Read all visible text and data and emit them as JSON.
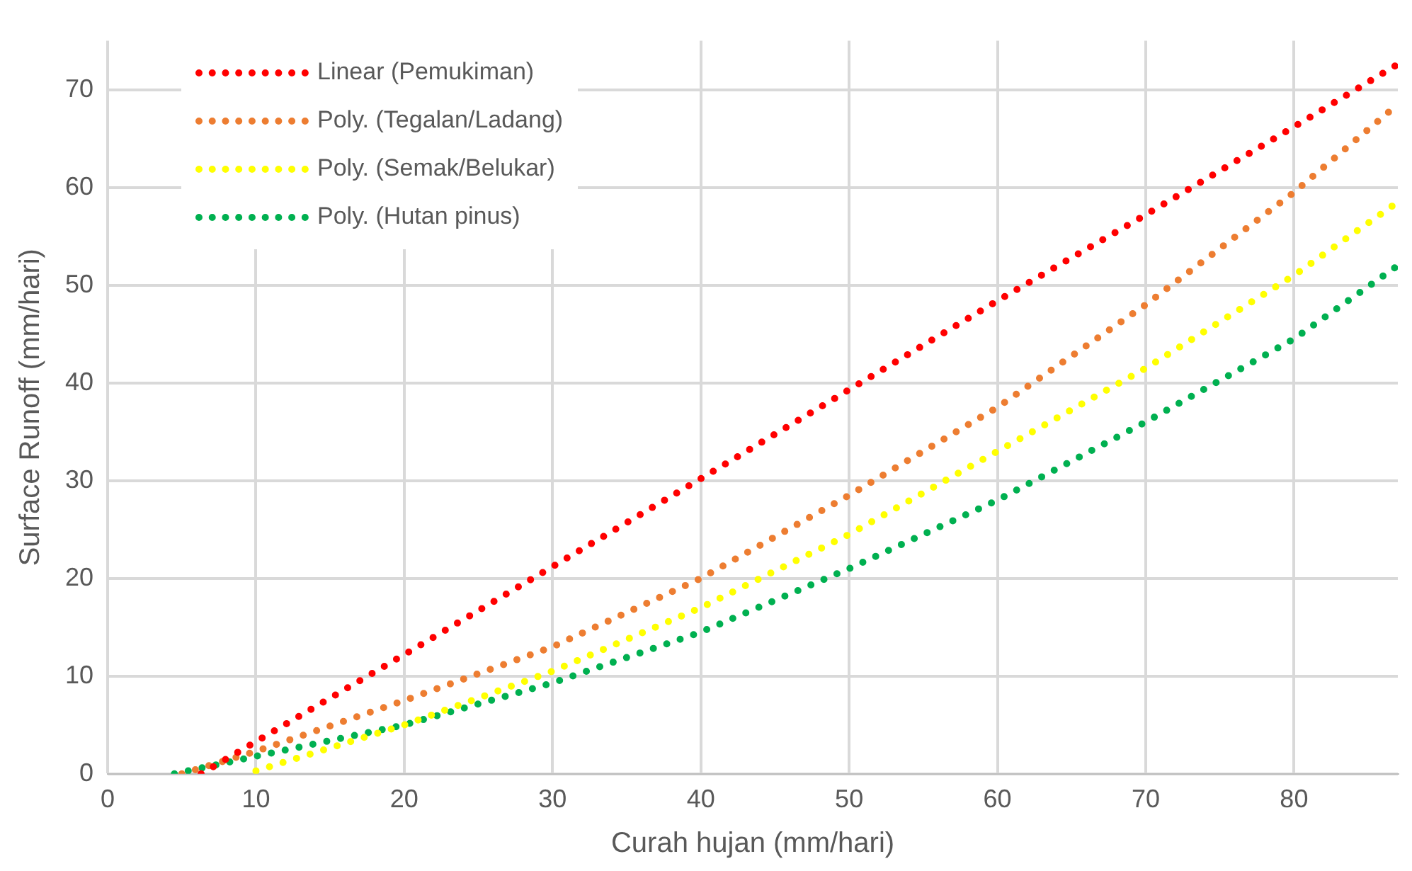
{
  "chart_data": {
    "type": "line",
    "xlabel": "Curah hujan (mm/hari)",
    "ylabel": "Surface Runoff (mm/hari)",
    "xlim": [
      0,
      87
    ],
    "xticks": [
      0,
      10,
      20,
      30,
      40,
      50,
      60,
      70,
      80
    ],
    "ylim": [
      0,
      75
    ],
    "yticks": [
      0,
      10,
      20,
      30,
      40,
      50,
      60,
      70
    ],
    "grid": true,
    "legend": "top left",
    "marker": "none",
    "line_style": "dotted",
    "series": [
      {
        "name": "Linear (Pemukiman)",
        "color": "#ff0000",
        "x": [
          6.3,
          10,
          20,
          30,
          40,
          50,
          60,
          70,
          80,
          87
        ],
        "values": [
          0,
          3.3,
          12.2,
          21.2,
          30.2,
          39.3,
          48.4,
          57.2,
          66.2,
          72.6
        ]
      },
      {
        "name": "Poly. (Tegalan/Ladang)",
        "color": "#ed7d31",
        "x": [
          5,
          10,
          20,
          30,
          40,
          50,
          60,
          70,
          80,
          87
        ],
        "values": [
          0,
          2.3,
          7.5,
          13,
          20,
          28.5,
          37.5,
          48,
          59.5,
          68.5
        ]
      },
      {
        "name": "Poly. (Semak/Belukar)",
        "color": "#ffff00",
        "x": [
          10,
          20,
          30,
          40,
          50,
          60,
          70,
          80,
          87
        ],
        "values": [
          0.3,
          5,
          10.5,
          17,
          24.5,
          33,
          41.5,
          51,
          58.5
        ]
      },
      {
        "name": "Poly. (Hutan pinus)",
        "color": "#00b050",
        "x": [
          4.5,
          10,
          20,
          30,
          40,
          50,
          60,
          70,
          80,
          87
        ],
        "values": [
          0,
          1.8,
          5,
          9.3,
          14.5,
          21,
          28,
          36,
          44.5,
          52
        ]
      }
    ]
  }
}
